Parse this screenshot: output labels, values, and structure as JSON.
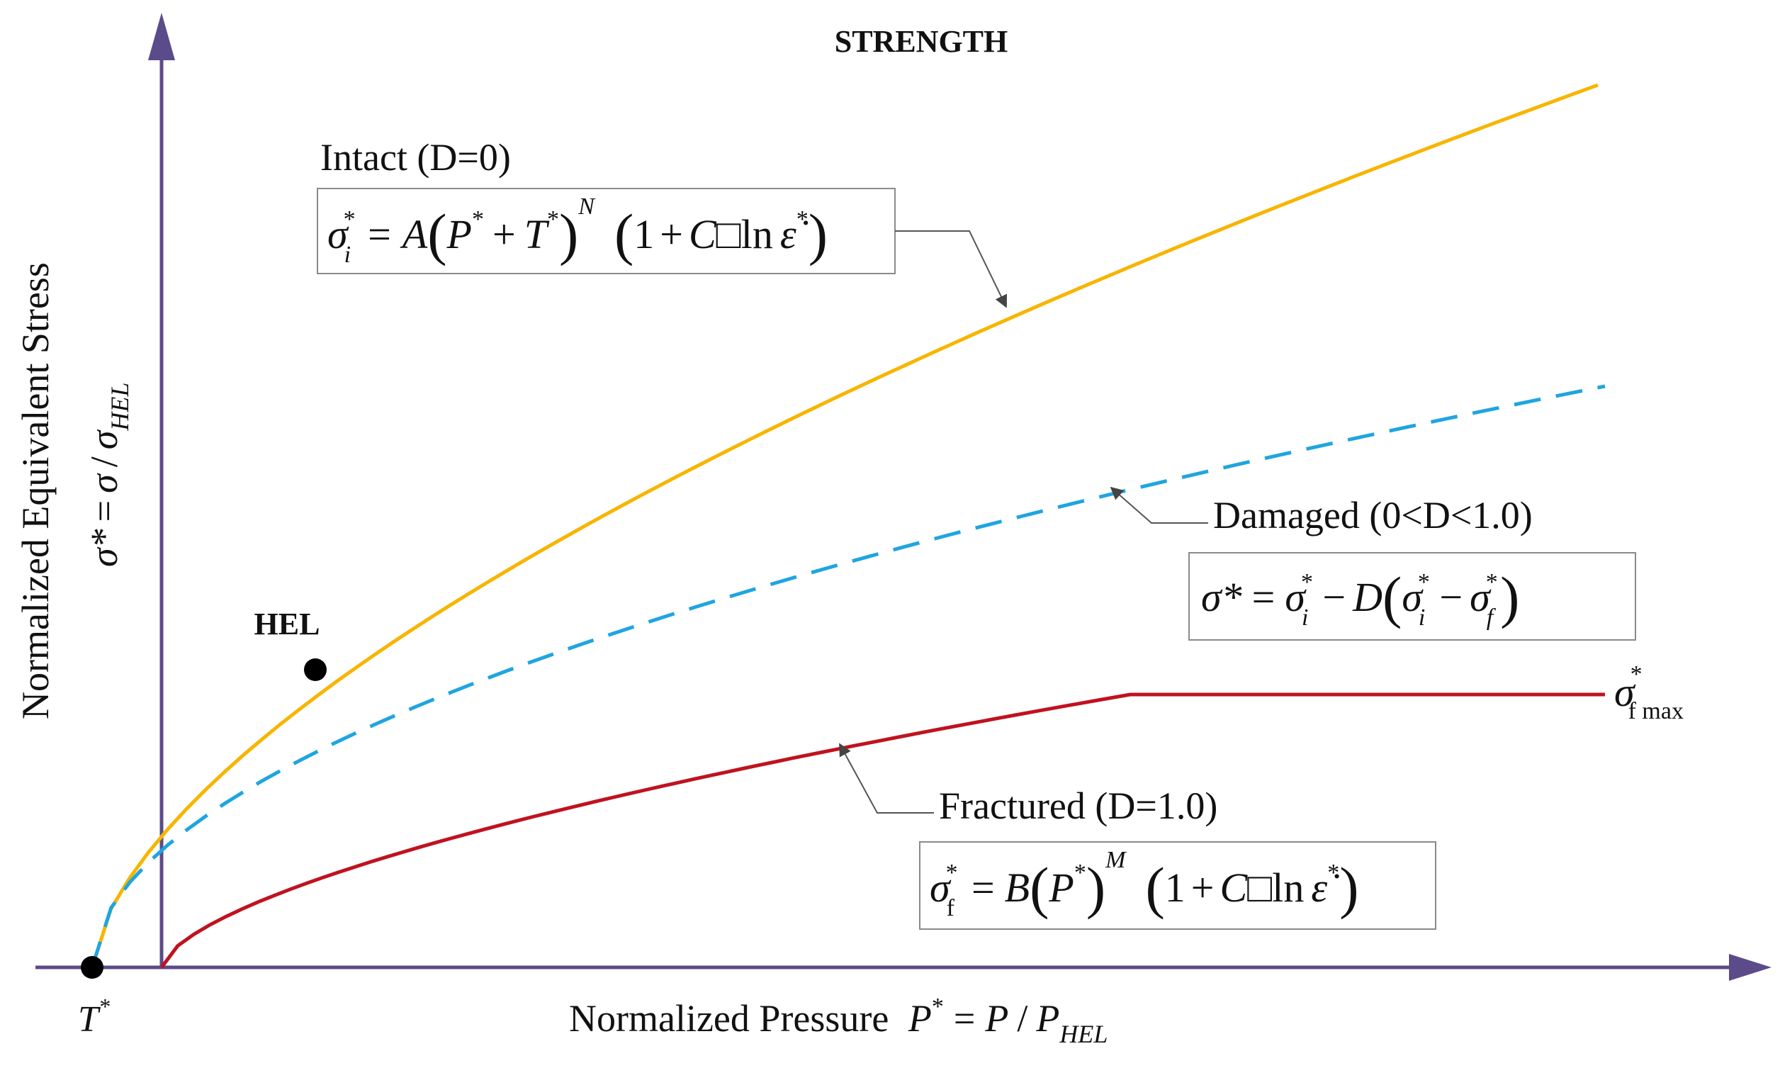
{
  "title": "STRENGTH",
  "axes": {
    "y_label": "Normalized Equivalent Stress",
    "y_formula": {
      "lhs": "σ*",
      "eq": "=",
      "num": "σ",
      "slash": "/",
      "den": "σ",
      "den_sub": "HEL"
    },
    "x_label": "Normalized Pressure",
    "x_formula": {
      "lhs": "P",
      "lhs_sup": "*",
      "eq": "=",
      "num": "P",
      "slash": "/",
      "den": "P",
      "den_sub": "HEL"
    },
    "origin_label": {
      "base": "T",
      "sup": "*"
    }
  },
  "colors": {
    "axis": "#5c4b8a",
    "intact": "#f7b500",
    "damaged": "#1fa5e0",
    "fractured": "#c0121f",
    "point": "#000000"
  },
  "points": {
    "hel_label": "HEL"
  },
  "curves": {
    "intact": {
      "label": "Intact (D=0)",
      "equation": {
        "lhs": "σ",
        "lhs_sub": "i",
        "lhs_sup": "*",
        "eq": "=",
        "A": "A",
        "P": "P",
        "P_sup": "*",
        "plus": "+",
        "T": "T",
        "T_sup": "*",
        "N": "N",
        "one": "1",
        "plus2": "+",
        "C": "C",
        "dot": "□",
        "ln": "ln",
        "eps": "ε̇",
        "eps_sup": "*"
      }
    },
    "damaged": {
      "label": "Damaged (0<D<1.0)",
      "equation": {
        "lhs": "σ*",
        "eq": "=",
        "si": "σ",
        "si_sub": "i",
        "si_sup": "*",
        "minus": "−",
        "D": "D",
        "si2": "σ",
        "si2_sub": "i",
        "si2_sup": "*",
        "minus2": "−",
        "sf": "σ",
        "sf_sub": "f",
        "sf_sup": "*"
      }
    },
    "fractured": {
      "label": "Fractured (D=1.0)",
      "equation": {
        "lhs": "σ",
        "lhs_sub": "f",
        "lhs_sup": "*",
        "eq": "=",
        "B": "B",
        "P": "P",
        "P_sup": "*",
        "M": "M",
        "one": "1",
        "plus": "+",
        "C": "C",
        "dot": "□",
        "ln": "ln",
        "eps": "ε̇",
        "eps_sup": "*"
      }
    },
    "fmax_label": {
      "base": "σ",
      "sup": "*",
      "sub": "f max"
    }
  }
}
